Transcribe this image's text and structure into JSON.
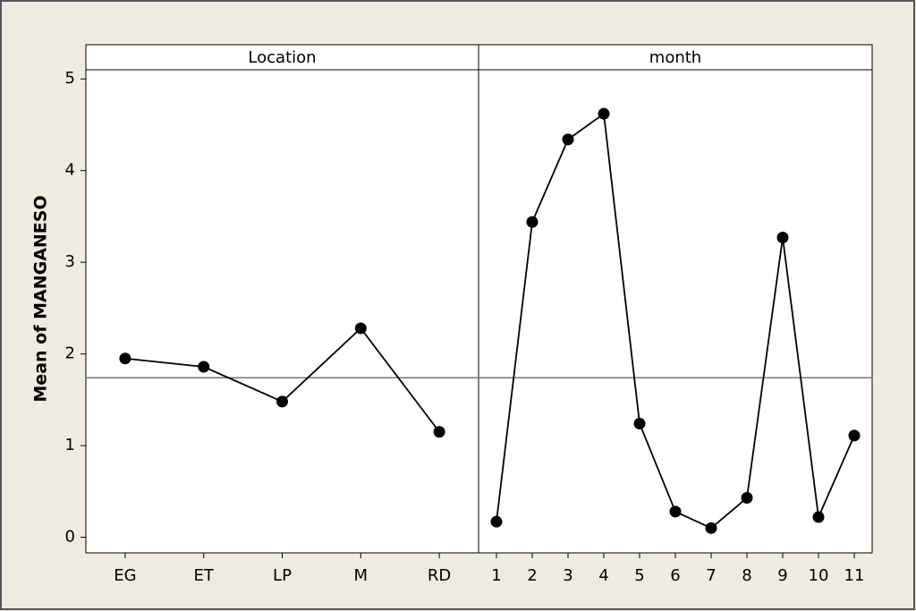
{
  "chart_data": [
    {
      "type": "line",
      "title": "Location",
      "ylabel": "Mean of MANGANESO",
      "categories": [
        "EG",
        "ET",
        "LP",
        "M",
        "RD"
      ],
      "values": [
        1.95,
        1.86,
        1.48,
        2.28,
        1.15
      ],
      "color": "#000000",
      "ylim": [
        -0.17,
        5.1
      ],
      "yticks": [
        0,
        1,
        2,
        3,
        4,
        5
      ],
      "reference_line": 1.74
    },
    {
      "type": "line",
      "title": "month",
      "categories": [
        "1",
        "2",
        "3",
        "4",
        "5",
        "6",
        "7",
        "8",
        "9",
        "10",
        "11"
      ],
      "values": [
        0.17,
        3.44,
        4.34,
        4.62,
        1.24,
        0.28,
        0.1,
        0.43,
        3.27,
        0.22,
        1.11
      ],
      "color": "#000000",
      "ylim": [
        -0.17,
        5.1
      ],
      "reference_line": 1.74
    }
  ]
}
